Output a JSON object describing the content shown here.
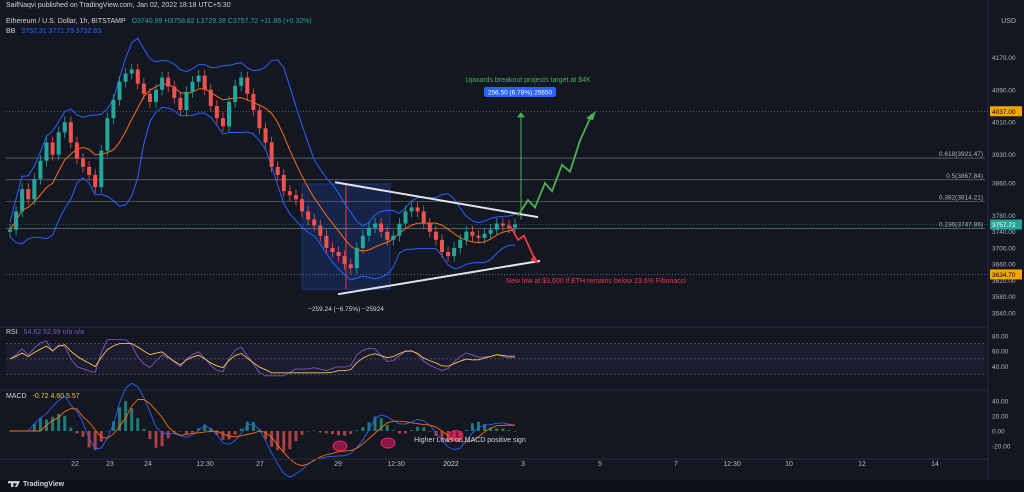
{
  "header": {
    "publisher": "SaifNaqvi published on TradingView.com, Jan 02, 2022 18:18 UTC+5:30",
    "symbol": "Ethereum / U.S. Dollar, 1h, BITSTAMP",
    "ohlc": "O3740.99 H3758.82 L3729.38 C3757.72 +11.86 (+0.32%)",
    "bb_label": "BB",
    "bb_values": "3752.31  3771.79  3732.83",
    "currency": "USD"
  },
  "colors": {
    "background": "#131722",
    "up_candle": "#26a69a",
    "down_candle": "#ef5350",
    "bb_band": "#2962ff",
    "bb_basis": "#ff6d00",
    "fib_line": "#b2b5be",
    "projection_up": "#4caf50",
    "projection_down": "#f23645",
    "macd_line": "#2962ff",
    "signal_line": "#ff6d00",
    "rsi_line": "#7e57c2",
    "rsi_ma": "#f7c548"
  },
  "rsi_header": {
    "label": "RSI",
    "values": "54.62  52.99  n/a  n/a"
  },
  "macd_header": {
    "label": "MACD",
    "values": "-0.72  4.60  5.57"
  },
  "footer": {
    "brand": "TradingView"
  },
  "chart_data": {
    "type": "candlestick",
    "price_axis": {
      "ticks": [
        4170.0,
        4090.0,
        4010.0,
        3930.0,
        3860.0,
        3780.0,
        3740.0,
        3700.0,
        3660.0,
        3620.0,
        3580.0,
        3540.0
      ],
      "ylim": [
        3510,
        4225
      ]
    },
    "x_ticks": [
      "22",
      "23",
      "24",
      "12:30",
      "27",
      "29",
      "12:30",
      "2022",
      "3",
      "5",
      "7",
      "12:30",
      "10",
      "12",
      "14"
    ],
    "price_labels": [
      {
        "value": 4037.0,
        "text": "4037.00",
        "color": "#f7a600"
      },
      {
        "value": 3757.72,
        "text": "3757.72",
        "color": "#26a69a"
      },
      {
        "value": 3634.7,
        "text": "3634.70",
        "color": "#f7a600"
      }
    ],
    "fib_levels": [
      {
        "ratio": "0.618",
        "value": 3921.47,
        "label": "0.618(3921.47)"
      },
      {
        "ratio": "0.5",
        "value": 3867.84,
        "label": "0.5(3867.84)"
      },
      {
        "ratio": "0.382",
        "value": 3814.21,
        "label": "0.382(3814.21)"
      },
      {
        "ratio": "0.236",
        "value": 3747.86,
        "label": "0.236(3747.86)"
      }
    ],
    "annotations": {
      "up_target_text": "Upwards breakout projects target at $4K",
      "up_measure": "256.50 (6.78%) 25650",
      "down_target_text": "New low at $3,600 if ETH remains below 23.6% Fibonacci",
      "down_measure": "−259.24 (−6.75%) −25924",
      "macd_text": "Higher Lows on MACD positive sign"
    },
    "rsi_axis": {
      "ticks": [
        "80.00",
        "60.00",
        "40.00"
      ],
      "ylim": [
        20,
        85
      ]
    },
    "macd_axis": {
      "ticks": [
        "40.00",
        "20.00",
        "0.00",
        "-20.00"
      ],
      "ylim": [
        -32,
        48
      ]
    },
    "close_series": [
      3745,
      3790,
      3845,
      3820,
      3870,
      3915,
      3960,
      3930,
      3985,
      4010,
      3960,
      3920,
      3900,
      3880,
      3850,
      3940,
      4020,
      4065,
      4110,
      4130,
      4140,
      4105,
      4080,
      4060,
      4090,
      4120,
      4098,
      4070,
      4040,
      4085,
      4110,
      4125,
      4090,
      4050,
      4020,
      4000,
      4060,
      4100,
      4120,
      4080,
      4040,
      3995,
      3960,
      3900,
      3880,
      3840,
      3830,
      3820,
      3790,
      3770,
      3755,
      3730,
      3700,
      3690,
      3680,
      3660,
      3650,
      3700,
      3730,
      3750,
      3760,
      3740,
      3720,
      3730,
      3760,
      3790,
      3800,
      3790,
      3760,
      3740,
      3720,
      3690,
      3680,
      3700,
      3720,
      3740,
      3730,
      3725,
      3735,
      3745,
      3760,
      3755,
      3750,
      3758
    ]
  }
}
